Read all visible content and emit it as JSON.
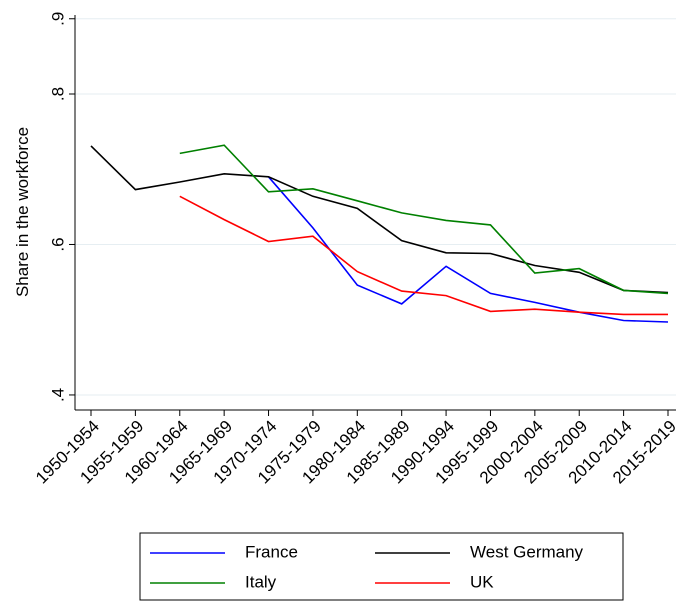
{
  "chart_data": {
    "type": "line",
    "y_label": "Share in the workforce",
    "categories": [
      "1950-1954",
      "1955-1959",
      "1960-1964",
      "1965-1969",
      "1970-1974",
      "1975-1979",
      "1980-1984",
      "1985-1989",
      "1990-1994",
      "1995-1999",
      "2000-2004",
      "2005-2009",
      "2010-2014",
      "2015-2019"
    ],
    "series": [
      {
        "name": "France",
        "color": "#0000ff",
        "values": [
          null,
          null,
          null,
          null,
          0.69,
          0.622,
          0.546,
          0.521,
          0.571,
          0.535,
          0.523,
          0.51,
          0.499,
          0.497
        ]
      },
      {
        "name": "West Germany",
        "color": "#000000",
        "values": [
          0.731,
          0.673,
          0.683,
          0.694,
          0.69,
          0.664,
          0.648,
          0.605,
          0.589,
          0.588,
          0.572,
          0.563,
          0.539,
          0.536
        ]
      },
      {
        "name": "Italy",
        "color": "#008000",
        "values": [
          null,
          null,
          0.721,
          0.732,
          0.67,
          0.674,
          0.658,
          0.642,
          0.632,
          0.626,
          0.562,
          0.568,
          0.539,
          0.535
        ]
      },
      {
        "name": "UK",
        "color": "#ff0000",
        "values": [
          null,
          null,
          0.664,
          0.633,
          0.604,
          0.611,
          0.564,
          0.538,
          0.532,
          0.511,
          0.514,
          0.51,
          0.507,
          0.507
        ]
      }
    ],
    "ylim": [
      0.38,
      0.905
    ],
    "yticks": [
      {
        "value": 0.4,
        "label": ".4"
      },
      {
        "value": 0.6,
        "label": ".6"
      },
      {
        "value": 0.8,
        "label": ".8"
      },
      {
        "value": 0.9,
        "label": ".9"
      }
    ],
    "grid": true
  }
}
